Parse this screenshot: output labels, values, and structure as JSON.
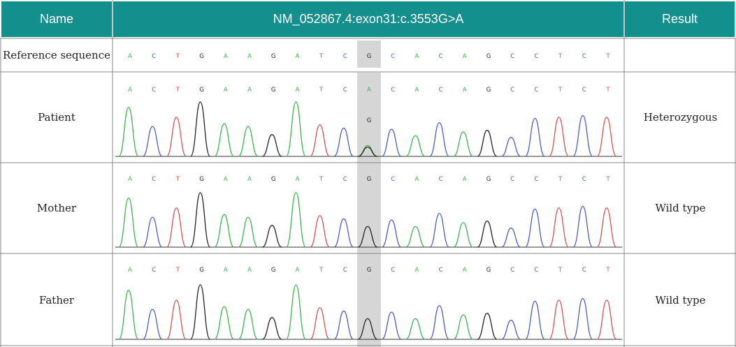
{
  "header": {
    "name_label": "Name",
    "variant_label": "NM_052867.4:exon31:c.3553G>A",
    "result_label": "Result"
  },
  "reference": {
    "label": "Reference sequence",
    "bases": [
      "A",
      "C",
      "T",
      "G",
      "A",
      "A",
      "G",
      "A",
      "T",
      "C",
      "G",
      "C",
      "A",
      "C",
      "A",
      "G",
      "C",
      "C",
      "T",
      "C",
      "T"
    ]
  },
  "samples": [
    {
      "name": "Patient",
      "result": "Heterozygous",
      "bases": [
        "A",
        "C",
        "T",
        "G",
        "A",
        "A",
        "G",
        "A",
        "T",
        "C",
        "A",
        "C",
        "A",
        "C",
        "A",
        "G",
        "C",
        "C",
        "T",
        "C",
        "T"
      ],
      "secondary_base": "G"
    },
    {
      "name": "Mother",
      "result": "Wild type",
      "bases": [
        "A",
        "C",
        "T",
        "G",
        "A",
        "A",
        "G",
        "A",
        "T",
        "C",
        "G",
        "C",
        "A",
        "C",
        "A",
        "G",
        "C",
        "C",
        "T",
        "C",
        "T"
      ]
    },
    {
      "name": "Father",
      "result": "Wild type",
      "bases": [
        "A",
        "C",
        "T",
        "G",
        "A",
        "A",
        "G",
        "A",
        "T",
        "C",
        "G",
        "C",
        "A",
        "C",
        "A",
        "G",
        "C",
        "C",
        "T",
        "C",
        "T"
      ]
    }
  ],
  "colors": {
    "header_bg": "#138f8e",
    "A": "#3cb44b",
    "C": "#4a5fc1",
    "G": "#222222",
    "T": "#d9534f",
    "highlight": "#d6d6d6"
  },
  "highlight_index": 10
}
